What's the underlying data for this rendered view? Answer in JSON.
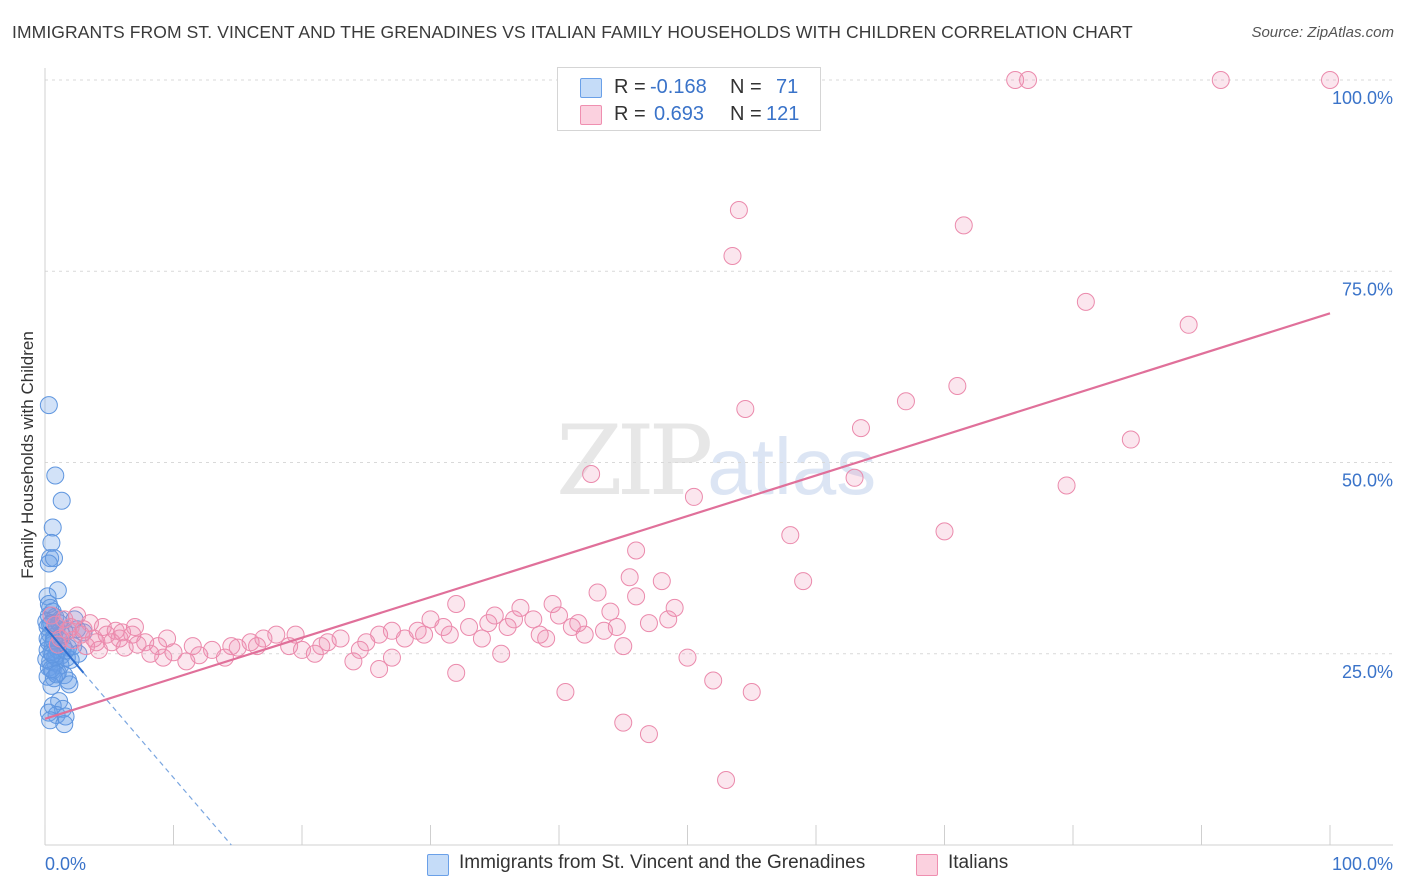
{
  "title": "IMMIGRANTS FROM ST. VINCENT AND THE GRENADINES VS ITALIAN FAMILY HOUSEHOLDS WITH CHILDREN CORRELATION CHART",
  "source": "Source: ZipAtlas.com",
  "watermark": {
    "zip": "ZIP",
    "atlas": "atlas"
  },
  "legend": {
    "r_label": "R =",
    "n_label": "N =",
    "rows": [
      {
        "r": "-0.168",
        "n": "71",
        "color": "#6aa0e8"
      },
      {
        "r": "0.693",
        "n": "121",
        "color": "#ef8fb0"
      }
    ]
  },
  "bottom_legend": [
    {
      "label": "Immigrants from St. Vincent and the Grenadines",
      "color": "#6aa0e8"
    },
    {
      "label": "Italians",
      "color": "#ef8fb0"
    }
  ],
  "chart_data": {
    "type": "scatter",
    "ylabel": "Family Households with Children",
    "x_tick_labels": [
      "0.0%",
      "100.0%"
    ],
    "y_tick_labels": [
      "25.0%",
      "50.0%",
      "75.0%",
      "100.0%"
    ],
    "y_tick_values": [
      25,
      50,
      75,
      100
    ],
    "xlim": [
      0,
      100
    ],
    "ylim": [
      0,
      100
    ],
    "grid": "horizontal dashed",
    "series": [
      {
        "name": "Immigrants from St. Vincent and the Grenadines",
        "color": "#6aa0e8",
        "trend": {
          "x0": 0,
          "y0": 28.5,
          "x1": 3.0,
          "y1": 22.5,
          "dashed_extension_to": [
            14.5,
            0
          ]
        },
        "points": [
          [
            0.3,
            57.5
          ],
          [
            0.8,
            48.3
          ],
          [
            1.3,
            45.0
          ],
          [
            0.6,
            41.5
          ],
          [
            0.5,
            39.5
          ],
          [
            0.4,
            37.5
          ],
          [
            0.7,
            37.5
          ],
          [
            0.3,
            36.8
          ],
          [
            1.0,
            33.3
          ],
          [
            0.2,
            32.5
          ],
          [
            0.4,
            31.0
          ],
          [
            0.6,
            30.5
          ],
          [
            0.3,
            30.0
          ],
          [
            0.8,
            29.8
          ],
          [
            1.2,
            29.5
          ],
          [
            0.5,
            29.0
          ],
          [
            0.2,
            28.5
          ],
          [
            0.9,
            28.3
          ],
          [
            1.5,
            28.0
          ],
          [
            2.5,
            28.2
          ],
          [
            3.0,
            27.8
          ],
          [
            0.4,
            27.5
          ],
          [
            0.7,
            27.2
          ],
          [
            1.1,
            26.8
          ],
          [
            0.3,
            26.5
          ],
          [
            0.6,
            26.2
          ],
          [
            1.4,
            26.0
          ],
          [
            1.8,
            25.8
          ],
          [
            0.2,
            25.5
          ],
          [
            0.5,
            25.2
          ],
          [
            0.9,
            25.0
          ],
          [
            1.3,
            24.8
          ],
          [
            1.7,
            24.5
          ],
          [
            2.0,
            24.2
          ],
          [
            0.4,
            24.0
          ],
          [
            0.8,
            23.8
          ],
          [
            1.2,
            23.5
          ],
          [
            0.3,
            23.2
          ],
          [
            0.6,
            22.8
          ],
          [
            1.0,
            22.5
          ],
          [
            1.5,
            22.2
          ],
          [
            0.2,
            22.0
          ],
          [
            0.7,
            21.8
          ],
          [
            1.8,
            21.5
          ],
          [
            1.9,
            21.0
          ],
          [
            0.5,
            20.8
          ],
          [
            1.1,
            18.8
          ],
          [
            0.6,
            18.2
          ],
          [
            1.4,
            17.8
          ],
          [
            0.3,
            17.3
          ],
          [
            0.9,
            17.0
          ],
          [
            1.6,
            16.8
          ],
          [
            0.4,
            16.3
          ],
          [
            1.5,
            15.8
          ],
          [
            2.2,
            26.0
          ],
          [
            2.6,
            25.0
          ],
          [
            0.1,
            24.3
          ],
          [
            0.2,
            27.0
          ],
          [
            0.1,
            29.2
          ],
          [
            0.3,
            31.5
          ],
          [
            1.0,
            25.5
          ],
          [
            0.8,
            24.6
          ],
          [
            1.3,
            27.5
          ],
          [
            0.5,
            23.0
          ],
          [
            0.7,
            26.7
          ],
          [
            1.1,
            29.0
          ],
          [
            0.9,
            22.3
          ],
          [
            1.6,
            25.4
          ],
          [
            0.4,
            28.8
          ],
          [
            2.3,
            29.5
          ],
          [
            0.6,
            24.9
          ]
        ]
      },
      {
        "name": "Italians",
        "color": "#ef8fb0",
        "trend": {
          "x0": 0,
          "y0": 16.5,
          "x1": 100,
          "y1": 69.5
        },
        "points": [
          [
            1.5,
            29.5
          ],
          [
            2.5,
            30.0
          ],
          [
            3.5,
            29.0
          ],
          [
            4.5,
            28.5
          ],
          [
            5.5,
            28.0
          ],
          [
            0.8,
            28.8
          ],
          [
            1.8,
            28.0
          ],
          [
            2.8,
            27.5
          ],
          [
            3.8,
            27.0
          ],
          [
            4.8,
            27.5
          ],
          [
            5.8,
            27.0
          ],
          [
            6.8,
            27.5
          ],
          [
            7.8,
            26.5
          ],
          [
            8.8,
            26.0
          ],
          [
            2.2,
            26.8
          ],
          [
            3.2,
            26.0
          ],
          [
            4.2,
            25.5
          ],
          [
            5.2,
            26.5
          ],
          [
            6.2,
            25.8
          ],
          [
            7.2,
            26.2
          ],
          [
            8.2,
            25.0
          ],
          [
            9.2,
            24.5
          ],
          [
            10.0,
            25.2
          ],
          [
            11.0,
            24.0
          ],
          [
            12.0,
            24.8
          ],
          [
            13.0,
            25.5
          ],
          [
            14.0,
            24.5
          ],
          [
            15.0,
            25.8
          ],
          [
            16.0,
            26.5
          ],
          [
            17.0,
            27.0
          ],
          [
            18.0,
            27.5
          ],
          [
            19.0,
            26.0
          ],
          [
            20.0,
            25.5
          ],
          [
            21.0,
            25.0
          ],
          [
            22.0,
            26.5
          ],
          [
            23.0,
            27.0
          ],
          [
            24.0,
            24.0
          ],
          [
            25.0,
            26.5
          ],
          [
            26.0,
            27.5
          ],
          [
            27.0,
            28.0
          ],
          [
            28.0,
            27.0
          ],
          [
            29.0,
            28.0
          ],
          [
            30.0,
            29.5
          ],
          [
            31.0,
            28.5
          ],
          [
            32.0,
            31.5
          ],
          [
            33.0,
            28.5
          ],
          [
            34.0,
            27.0
          ],
          [
            35.0,
            30.0
          ],
          [
            36.0,
            28.5
          ],
          [
            37.0,
            31.0
          ],
          [
            38.0,
            29.5
          ],
          [
            39.0,
            27.0
          ],
          [
            40.0,
            30.0
          ],
          [
            41.0,
            28.5
          ],
          [
            42.0,
            27.5
          ],
          [
            43.0,
            33.0
          ],
          [
            44.0,
            30.5
          ],
          [
            45.0,
            26.0
          ],
          [
            46.0,
            32.5
          ],
          [
            47.0,
            29.0
          ],
          [
            48.0,
            34.5
          ],
          [
            49.0,
            31.0
          ],
          [
            50.0,
            24.5
          ],
          [
            9.5,
            27.0
          ],
          [
            14.5,
            26.0
          ],
          [
            19.5,
            27.5
          ],
          [
            24.5,
            25.5
          ],
          [
            29.5,
            27.5
          ],
          [
            34.5,
            29.0
          ],
          [
            39.5,
            31.5
          ],
          [
            44.5,
            28.5
          ],
          [
            26.0,
            23.0
          ],
          [
            27.0,
            24.5
          ],
          [
            32.0,
            22.5
          ],
          [
            35.5,
            25.0
          ],
          [
            40.5,
            20.0
          ],
          [
            45.0,
            16.0
          ],
          [
            47.0,
            14.5
          ],
          [
            52.0,
            21.5
          ],
          [
            53.0,
            8.5
          ],
          [
            55.0,
            20.0
          ],
          [
            53.5,
            77.0
          ],
          [
            54.0,
            83.0
          ],
          [
            54.5,
            57.0
          ],
          [
            50.5,
            45.5
          ],
          [
            42.5,
            48.5
          ],
          [
            46.0,
            38.5
          ],
          [
            45.5,
            35.0
          ],
          [
            58.0,
            40.5
          ],
          [
            59.0,
            34.5
          ],
          [
            63.5,
            54.5
          ],
          [
            63.0,
            48.0
          ],
          [
            67.0,
            58.0
          ],
          [
            70.0,
            41.0
          ],
          [
            71.0,
            60.0
          ],
          [
            71.5,
            81.0
          ],
          [
            79.5,
            47.0
          ],
          [
            81.0,
            71.0
          ],
          [
            84.5,
            53.0
          ],
          [
            89.0,
            68.0
          ],
          [
            75.5,
            100.0
          ],
          [
            76.5,
            100.0
          ],
          [
            91.5,
            100.0
          ],
          [
            100.0,
            100.0
          ],
          [
            1.2,
            27.0
          ],
          [
            2.0,
            28.5
          ],
          [
            3.0,
            28.2
          ],
          [
            4.0,
            26.5
          ],
          [
            0.5,
            30.0
          ],
          [
            6.0,
            27.8
          ],
          [
            7.0,
            28.5
          ],
          [
            1.0,
            26.2
          ],
          [
            11.5,
            26.0
          ],
          [
            16.5,
            26.0
          ],
          [
            21.5,
            26.0
          ],
          [
            31.5,
            27.5
          ],
          [
            36.5,
            29.5
          ],
          [
            41.5,
            29.0
          ],
          [
            43.5,
            28.0
          ],
          [
            48.5,
            29.5
          ],
          [
            38.5,
            27.5
          ]
        ]
      }
    ]
  }
}
